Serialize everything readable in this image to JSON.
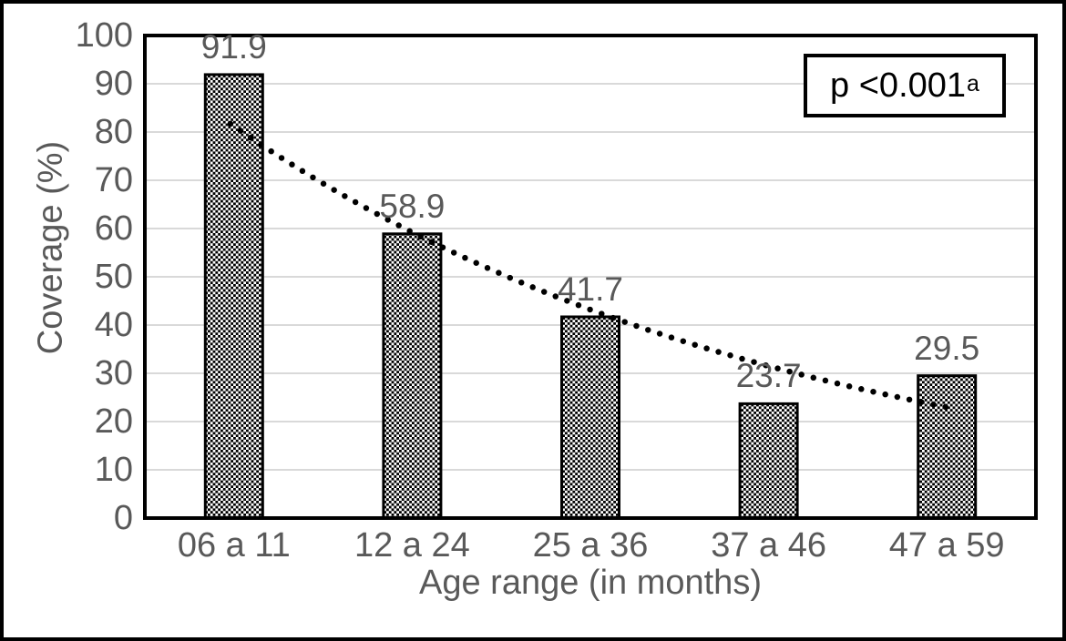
{
  "chart_data": {
    "type": "bar",
    "title": "",
    "categories": [
      "06 a 11",
      "12 a 24",
      "25 a 36",
      "37 a 46",
      "47 a 59"
    ],
    "values": [
      91.9,
      58.9,
      41.7,
      23.7,
      29.5
    ],
    "value_labels": [
      "91.9",
      "58.9",
      "41.7",
      "23.7",
      "29.5"
    ],
    "xlabel": "Age range (in months)",
    "ylabel": "Coverage (%)",
    "ylim": [
      0,
      100
    ],
    "yticks": [
      0,
      10,
      20,
      30,
      40,
      50,
      60,
      70,
      80,
      90,
      100
    ],
    "grid": true,
    "legend": "none",
    "bar_fill": "black-white-checkerboard-pattern",
    "annotation": {
      "text": "p <0.001",
      "superscript": "a"
    },
    "trendline": {
      "type": "exponential",
      "style": "dotted",
      "a": 111.3,
      "b": -0.3155,
      "t_start": 0.98,
      "t_end": 5.06,
      "approx_values_at_bars": [
        81.2,
        59.4,
        43.4,
        31.7,
        23.2
      ]
    },
    "colors": {
      "axis_text": "#595959",
      "gridline": "#d9d9d9",
      "bar_border": "#000000",
      "plot_border": "#000000",
      "trendline": "#000000",
      "annotation_text": "#000000",
      "background": "#ffffff"
    }
  }
}
